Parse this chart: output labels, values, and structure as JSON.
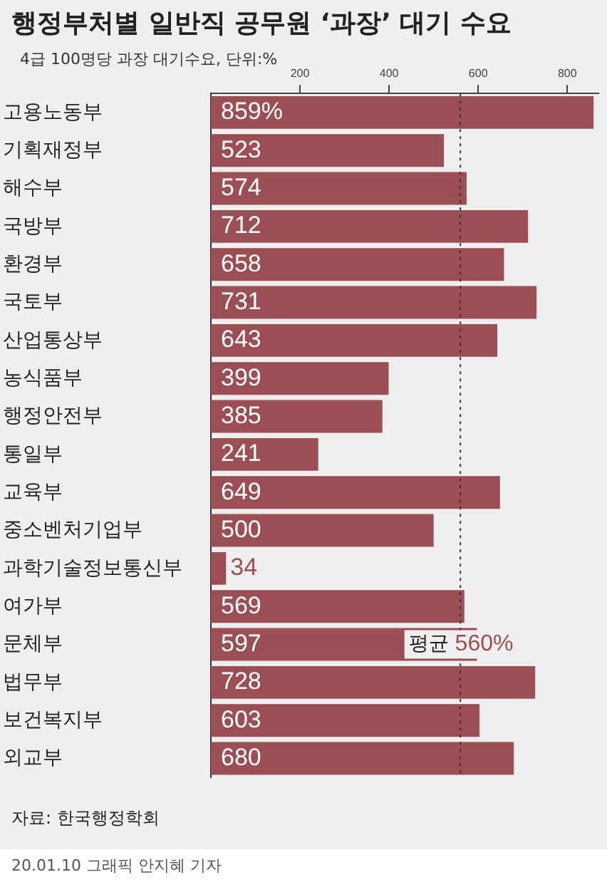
{
  "chart_data": {
    "type": "bar",
    "orientation": "horizontal",
    "title": "행정부처별 일반직 공무원 ‘과장’ 대기 수요",
    "subtitle": "4급 100명당 과장 대기수요, 단위:%",
    "categories": [
      "고용노동부",
      "기획재정부",
      "해수부",
      "국방부",
      "환경부",
      "국토부",
      "산업통상부",
      "농식품부",
      "행정안전부",
      "통일부",
      "교육부",
      "중소벤처기업부",
      "과학기술정보통신부",
      "여가부",
      "문체부",
      "법무부",
      "보건복지부",
      "외교부"
    ],
    "values": [
      859,
      523,
      574,
      712,
      658,
      731,
      643,
      399,
      385,
      241,
      649,
      500,
      34,
      569,
      597,
      728,
      603,
      680
    ],
    "value_labels": [
      "859%",
      "523",
      "574",
      "712",
      "658",
      "731",
      "643",
      "399",
      "385",
      "241",
      "649",
      "500",
      "34",
      "569",
      "597",
      "728",
      "603",
      "680"
    ],
    "color": "#9b4f55",
    "xlim": [
      0,
      870
    ],
    "xticks": [
      200,
      400,
      600,
      800
    ],
    "grid": false,
    "legend": false,
    "ref_lines": [
      {
        "axis": "x",
        "value": 560,
        "label": "평균 560%",
        "line_style": "dotted"
      }
    ],
    "annotations": [
      "자료: 한국행정학회",
      "20.01.10 그래픽 안지혜 기자"
    ]
  }
}
